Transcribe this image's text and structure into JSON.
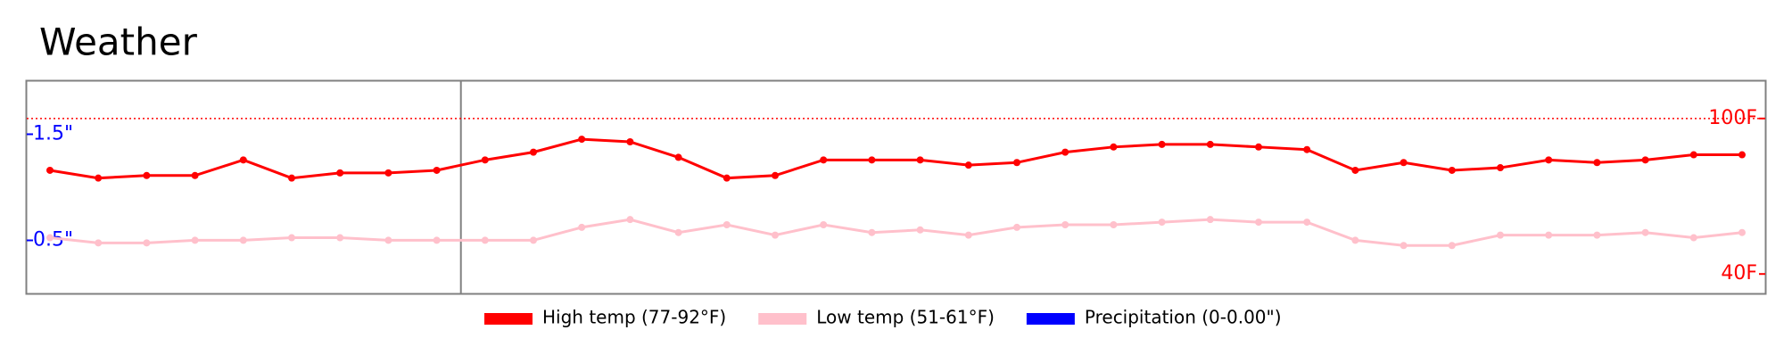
{
  "chart_data": {
    "type": "line",
    "title": "Weather",
    "series": [
      {
        "name": "High temp (77-92°F)",
        "color": "#ff0000",
        "values": [
          80,
          77,
          78,
          78,
          84,
          77,
          79,
          79,
          80,
          84,
          87,
          92,
          91,
          85,
          77,
          78,
          84,
          84,
          84,
          82,
          83,
          87,
          89,
          90,
          90,
          89,
          88,
          80,
          83,
          80,
          81,
          84,
          83,
          84,
          86,
          86
        ]
      },
      {
        "name": "Low temp (51-61°F)",
        "color": "#ffc0cb",
        "values": [
          54,
          52,
          52,
          53,
          53,
          54,
          54,
          53,
          53,
          53,
          53,
          58,
          61,
          56,
          59,
          55,
          59,
          56,
          57,
          55,
          58,
          59,
          59,
          60,
          61,
          60,
          60,
          53,
          51,
          51,
          55,
          55,
          55,
          56,
          54,
          56
        ]
      },
      {
        "name": "Precipitation (0-0.00\")",
        "color": "#0000ff",
        "axis": "y2"
      }
    ],
    "ylim": [
      32.5,
      114.4
    ],
    "yticks": [
      {
        "value": 40,
        "label": "40F"
      },
      {
        "value": 100,
        "label": "100F"
      }
    ],
    "y2lim": [
      0,
      2
    ],
    "y2ticks": [
      {
        "value": 0.5,
        "label": "0.5\""
      },
      {
        "value": 1.5,
        "label": "1.5\""
      }
    ],
    "ref_line": 100
  }
}
